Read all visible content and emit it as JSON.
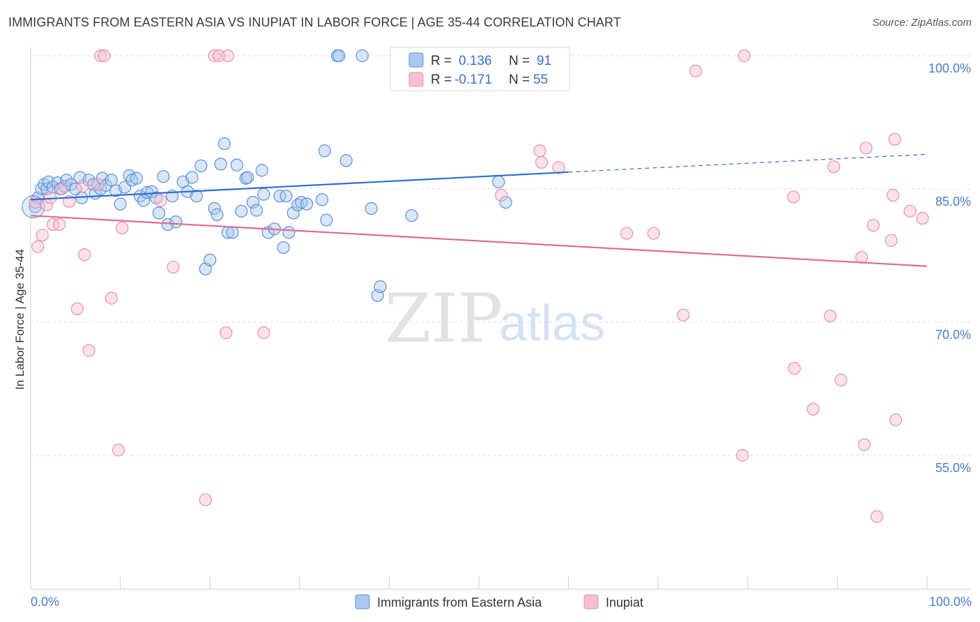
{
  "title": "IMMIGRANTS FROM EASTERN ASIA VS INUPIAT IN LABOR FORCE | AGE 35-44 CORRELATION CHART",
  "source": "Source: ZipAtlas.com",
  "colors": {
    "blue_fill": "#a9c8f0",
    "blue_stroke": "#5b8fd8",
    "blue_line": "#2f6fcf",
    "pink_fill": "#f6bfd0",
    "pink_stroke": "#e590ad",
    "pink_line": "#e06a94",
    "grid": "#dcdcdc",
    "axis_text": "#4a7cc9"
  },
  "legend_top": {
    "rows": [
      {
        "r_label": "R = ",
        "r_value": "0.136",
        "n_label": "N = ",
        "n_value": "91"
      },
      {
        "r_label": "R = ",
        "r_value": "-0.171",
        "n_label": "N = ",
        "n_value": "55"
      }
    ]
  },
  "watermark": {
    "part1": "ZIP",
    "part2": "atlas"
  },
  "chart_data": {
    "type": "scatter",
    "xlabel": "",
    "ylabel": "In Labor Force | Age 35-44",
    "xlim": [
      0,
      100
    ],
    "ylim": [
      40,
      102
    ],
    "x_tick_labels": [
      "0.0%",
      "100.0%"
    ],
    "y_ticks": [
      55,
      70,
      85,
      100
    ],
    "y_tick_labels": [
      "55.0%",
      "70.0%",
      "85.0%",
      "100.0%"
    ],
    "grid": "horizontal dashed",
    "legend_position": "bottom-center",
    "series": [
      {
        "name": "Immigrants from Eastern Asia",
        "color": "#a9c8f0",
        "trend": {
          "x": [
            0,
            60
          ],
          "y": [
            83.8,
            86.9
          ],
          "dashed_to": [
            100,
            88.9
          ]
        },
        "points": [
          [
            0.5,
            83
          ],
          [
            0.8,
            84
          ],
          [
            1.2,
            85
          ],
          [
            1.5,
            85.5
          ],
          [
            1.8,
            85
          ],
          [
            2,
            85.8
          ],
          [
            2.5,
            85.2
          ],
          [
            3,
            85.7
          ],
          [
            3.3,
            85
          ],
          [
            3.8,
            85.3
          ],
          [
            4,
            86
          ],
          [
            4.5,
            85.5
          ],
          [
            5,
            85
          ],
          [
            5.5,
            86.3
          ],
          [
            5.7,
            84
          ],
          [
            6.5,
            86
          ],
          [
            7,
            85.5
          ],
          [
            7.2,
            84.5
          ],
          [
            7.8,
            85
          ],
          [
            8,
            86.2
          ],
          [
            8.4,
            85.4
          ],
          [
            9,
            86
          ],
          [
            9.5,
            84.8
          ],
          [
            10,
            83.3
          ],
          [
            10.5,
            85.2
          ],
          [
            11,
            86.5
          ],
          [
            11.3,
            86
          ],
          [
            11.8,
            86.2
          ],
          [
            12.2,
            84.2
          ],
          [
            12.6,
            83.7
          ],
          [
            13,
            84.6
          ],
          [
            13.5,
            84.7
          ],
          [
            14,
            84
          ],
          [
            14.3,
            82.3
          ],
          [
            14.8,
            86.4
          ],
          [
            15.3,
            81
          ],
          [
            15.8,
            84.2
          ],
          [
            16.2,
            81.3
          ],
          [
            17,
            85.8
          ],
          [
            17.5,
            84.7
          ],
          [
            18,
            86.3
          ],
          [
            18.5,
            84.2
          ],
          [
            19,
            87.6
          ],
          [
            19.5,
            76
          ],
          [
            20,
            77
          ],
          [
            20.5,
            82.8
          ],
          [
            20.8,
            82.1
          ],
          [
            21.2,
            87.8
          ],
          [
            21.6,
            90.1
          ],
          [
            22,
            80.1
          ],
          [
            22.5,
            80.1
          ],
          [
            23,
            87.7
          ],
          [
            23.5,
            82.5
          ],
          [
            24,
            86.2
          ],
          [
            24.2,
            86.3
          ],
          [
            24.8,
            83.5
          ],
          [
            25.2,
            82.6
          ],
          [
            25.8,
            87.1
          ],
          [
            26,
            84.4
          ],
          [
            26.5,
            80.1
          ],
          [
            27.2,
            80.5
          ],
          [
            27.8,
            84.2
          ],
          [
            28.2,
            78.4
          ],
          [
            28.5,
            84.2
          ],
          [
            28.8,
            80.1
          ],
          [
            29.3,
            82.3
          ],
          [
            29.8,
            83.2
          ],
          [
            30.2,
            83.5
          ],
          [
            30.8,
            83.3
          ],
          [
            32.5,
            83.8
          ],
          [
            32.8,
            89.3
          ],
          [
            33,
            81.5
          ],
          [
            34.2,
            100
          ],
          [
            34.4,
            100
          ],
          [
            35.2,
            88.2
          ],
          [
            37,
            100
          ],
          [
            38,
            82.8
          ],
          [
            38.7,
            73
          ],
          [
            39,
            74
          ],
          [
            42.5,
            82
          ],
          [
            52.2,
            85.8
          ],
          [
            53,
            83.5
          ],
          [
            53.8,
            100
          ]
        ]
      },
      {
        "name": "Inupiat",
        "color": "#f6bfd0",
        "trend": {
          "x": [
            0,
            100
          ],
          "y": [
            82,
            76.3
          ]
        },
        "points": [
          [
            0.5,
            83.5
          ],
          [
            0.8,
            78.5
          ],
          [
            1.3,
            79.8
          ],
          [
            1.8,
            83.2
          ],
          [
            2.2,
            84
          ],
          [
            2.5,
            81
          ],
          [
            3.2,
            81
          ],
          [
            3.5,
            85
          ],
          [
            4.3,
            83.6
          ],
          [
            5.2,
            71.5
          ],
          [
            5.8,
            85.3
          ],
          [
            6,
            77.6
          ],
          [
            6.5,
            66.8
          ],
          [
            7.5,
            85.5
          ],
          [
            7.8,
            100
          ],
          [
            8.2,
            100
          ],
          [
            9,
            72.7
          ],
          [
            9.8,
            55.6
          ],
          [
            10.2,
            80.6
          ],
          [
            14.5,
            83.7
          ],
          [
            15.9,
            76.2
          ],
          [
            19.5,
            50
          ],
          [
            20.5,
            100
          ],
          [
            21,
            100
          ],
          [
            21.8,
            68.8
          ],
          [
            22,
            100
          ],
          [
            26,
            68.8
          ],
          [
            52.5,
            84.3
          ],
          [
            56.8,
            89.3
          ],
          [
            57,
            88
          ],
          [
            58.9,
            87.4
          ],
          [
            66.5,
            80
          ],
          [
            69.5,
            80
          ],
          [
            72.8,
            70.8
          ],
          [
            74.2,
            98.3
          ],
          [
            79.6,
            100
          ],
          [
            79.4,
            55
          ],
          [
            85.1,
            84.1
          ],
          [
            85.2,
            64.8
          ],
          [
            87.3,
            60.2
          ],
          [
            89.2,
            70.7
          ],
          [
            89.6,
            87.5
          ],
          [
            90.4,
            63.5
          ],
          [
            92.7,
            77.3
          ],
          [
            93,
            56.2
          ],
          [
            93.2,
            89.6
          ],
          [
            94,
            80.9
          ],
          [
            94.4,
            48.1
          ],
          [
            96,
            79.2
          ],
          [
            96.2,
            84.3
          ],
          [
            96.5,
            59
          ],
          [
            96.4,
            90.6
          ],
          [
            98.1,
            82.5
          ],
          [
            99.5,
            81.7
          ]
        ]
      }
    ]
  }
}
